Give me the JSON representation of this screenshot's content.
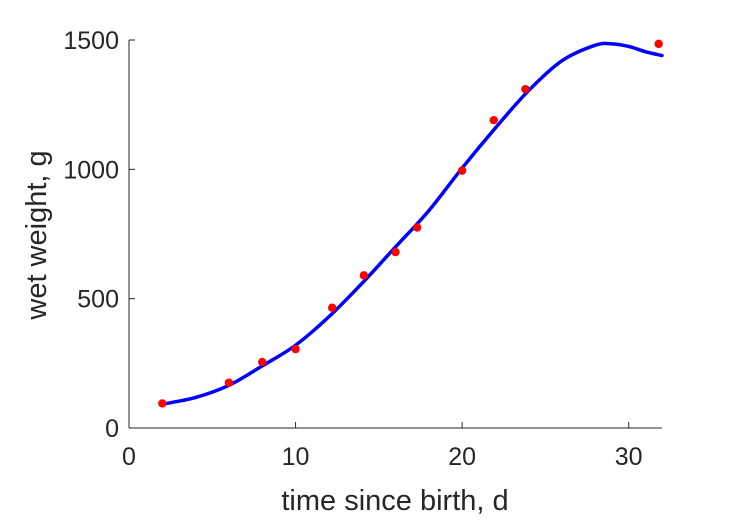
{
  "chart_data": {
    "type": "scatter",
    "xlabel": "time since birth, d",
    "ylabel": "wet weight, g",
    "xlim": [
      0,
      32
    ],
    "ylim": [
      0,
      1500
    ],
    "xticks": [
      0,
      10,
      20,
      30
    ],
    "yticks": [
      0,
      500,
      1000,
      1500
    ],
    "xtick_labels": [
      "0",
      "10",
      "20",
      "30"
    ],
    "ytick_labels": [
      "0",
      "500",
      "1000",
      "1500"
    ],
    "grid": false,
    "legend": "none",
    "series": [
      {
        "kind": "points",
        "color": "#ff0000",
        "x": [
          2,
          6,
          8,
          10,
          12.2,
          14.1,
          16,
          17.3,
          20,
          21.9,
          23.8,
          31.8
        ],
        "y": [
          95,
          175,
          255,
          305,
          465,
          590,
          680,
          775,
          995,
          1190,
          1310,
          1485
        ]
      },
      {
        "kind": "line",
        "color": "#0000ff",
        "x": [
          2,
          4,
          6,
          8,
          10,
          12,
          14,
          16,
          18,
          20,
          22,
          24,
          26,
          28,
          29,
          30,
          31,
          32
        ],
        "y": [
          92,
          118,
          165,
          240,
          320,
          430,
          560,
          700,
          840,
          1005,
          1160,
          1305,
          1420,
          1480,
          1485,
          1475,
          1455,
          1440
        ]
      }
    ]
  }
}
